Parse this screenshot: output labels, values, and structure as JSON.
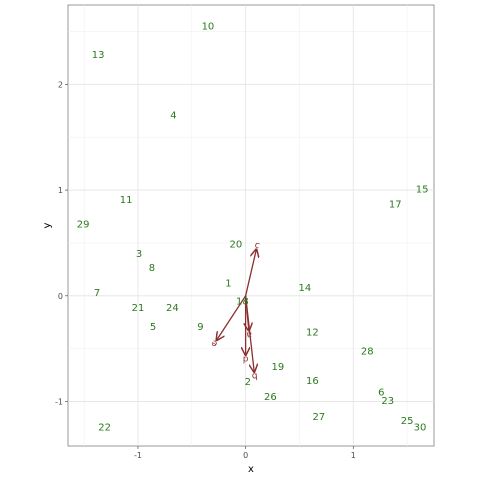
{
  "chart_data": {
    "type": "scatter",
    "title": "",
    "xlabel": "x",
    "ylabel": "y",
    "xlim": [
      -1.65,
      1.75
    ],
    "ylim": [
      -1.42,
      2.75
    ],
    "x_ticks": [
      -1,
      0,
      1
    ],
    "x_tick_labels": [
      "-1",
      "0",
      "1"
    ],
    "y_ticks": [
      -1,
      0,
      1,
      2
    ],
    "y_tick_labels": [
      "-1",
      "0",
      "1",
      "2"
    ],
    "grid": true,
    "point_color": "#2b7a1e",
    "vector_color": "#8b2e2e",
    "points": [
      {
        "label": "1",
        "x": -0.16,
        "y": 0.12
      },
      {
        "label": "2",
        "x": 0.02,
        "y": -0.81
      },
      {
        "label": "3",
        "x": -0.99,
        "y": 0.4
      },
      {
        "label": "4",
        "x": -0.67,
        "y": 1.71
      },
      {
        "label": "5",
        "x": -0.86,
        "y": -0.29
      },
      {
        "label": "6",
        "x": 1.26,
        "y": -0.91
      },
      {
        "label": "7",
        "x": -1.38,
        "y": 0.03
      },
      {
        "label": "8",
        "x": -0.87,
        "y": 0.27
      },
      {
        "label": "9",
        "x": -0.42,
        "y": -0.29
      },
      {
        "label": "10",
        "x": -0.35,
        "y": 2.55
      },
      {
        "label": "11",
        "x": -1.11,
        "y": 0.91
      },
      {
        "label": "12",
        "x": 0.62,
        "y": -0.34
      },
      {
        "label": "13",
        "x": -1.37,
        "y": 2.28
      },
      {
        "label": "14",
        "x": 0.55,
        "y": 0.08
      },
      {
        "label": "15",
        "x": 1.64,
        "y": 1.01
      },
      {
        "label": "16",
        "x": 0.62,
        "y": -0.8
      },
      {
        "label": "17",
        "x": 1.39,
        "y": 0.87
      },
      {
        "label": "18",
        "x": -0.03,
        "y": -0.05
      },
      {
        "label": "19",
        "x": 0.3,
        "y": -0.67
      },
      {
        "label": "20",
        "x": -0.09,
        "y": 0.49
      },
      {
        "label": "21",
        "x": -1.0,
        "y": -0.11
      },
      {
        "label": "22",
        "x": -1.31,
        "y": -1.24
      },
      {
        "label": "23",
        "x": 1.32,
        "y": -0.99
      },
      {
        "label": "24",
        "x": -0.68,
        "y": -0.11
      },
      {
        "label": "25",
        "x": 1.5,
        "y": -1.18
      },
      {
        "label": "26",
        "x": 0.23,
        "y": -0.95
      },
      {
        "label": "27",
        "x": 0.68,
        "y": -1.14
      },
      {
        "label": "28",
        "x": 1.13,
        "y": -0.52
      },
      {
        "label": "29",
        "x": -1.51,
        "y": 0.68
      },
      {
        "label": "30",
        "x": 1.62,
        "y": -1.24
      }
    ],
    "vectors": [
      {
        "label": "a",
        "x": 0.03,
        "y": -0.33
      },
      {
        "label": "b",
        "x": 0.08,
        "y": -0.72
      },
      {
        "label": "c",
        "x": 0.1,
        "y": 0.44
      },
      {
        "label": "d",
        "x": 0.0,
        "y": -0.56
      },
      {
        "label": "e",
        "x": -0.27,
        "y": -0.42
      }
    ]
  }
}
